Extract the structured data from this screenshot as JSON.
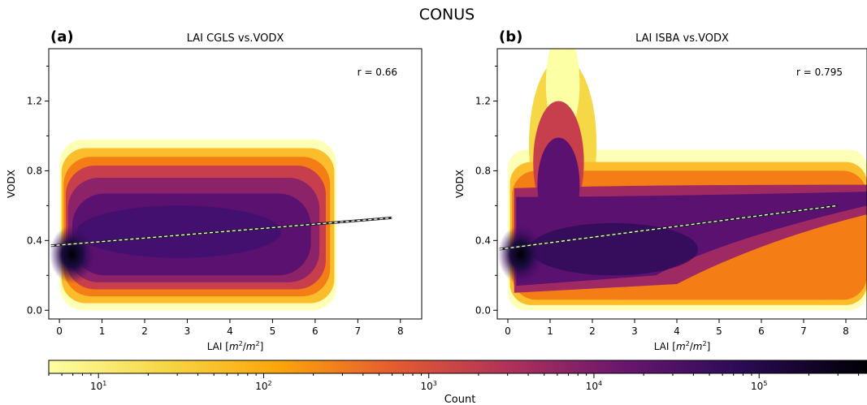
{
  "figure": {
    "suptitle": "CONUS"
  },
  "colorbar": {
    "label": "Count",
    "scale": "log",
    "range": [
      5,
      450000
    ],
    "ticks": [
      {
        "value": 10,
        "base": "10",
        "exp": "1"
      },
      {
        "value": 100,
        "base": "10",
        "exp": "2"
      },
      {
        "value": 1000,
        "base": "10",
        "exp": "3"
      },
      {
        "value": 10000,
        "base": "10",
        "exp": "4"
      },
      {
        "value": 100000,
        "base": "10",
        "exp": "5"
      }
    ],
    "colormap": "inferno_r",
    "colors": [
      "#fcffa4",
      "#fac228",
      "#f57d15",
      "#d44842",
      "#9f2a63",
      "#65156e",
      "#280b53",
      "#000004"
    ]
  },
  "chart_data": [
    {
      "type": "heatmap",
      "panel_label": "(a)",
      "title": "LAI CGLS vs.VODX",
      "xlabel": {
        "prefix": "LAI [",
        "unit_num": "m",
        "unit_num_exp": "2",
        "unit_den": "m",
        "unit_den_exp": "2",
        "suffix": "]"
      },
      "ylabel": "VODX",
      "xlim": [
        -0.25,
        8.5
      ],
      "ylim": [
        -0.05,
        1.5
      ],
      "xticks": [
        0,
        1,
        2,
        3,
        4,
        5,
        6,
        7,
        8
      ],
      "yticks": [
        0.0,
        0.4,
        0.8,
        1.2
      ],
      "ytick_labels": [
        "0.0",
        "0.4",
        "0.8",
        "1.2"
      ],
      "annotation": "r = 0.66",
      "regression_line": {
        "x": [
          -0.2,
          7.8
        ],
        "y": [
          0.37,
          0.53
        ]
      },
      "density": {
        "x_extent": [
          0.0,
          6.5
        ],
        "y_extent": [
          0.0,
          1.0
        ],
        "hotspot": {
          "x": 0.3,
          "y": 0.32
        },
        "description_note": "hexbin counts; densest near LAI 0-1, VODX 0.25-0.45"
      }
    },
    {
      "type": "heatmap",
      "panel_label": "(b)",
      "title": "LAI ISBA vs.VODX",
      "xlabel": {
        "prefix": "LAI [",
        "unit_num": "m",
        "unit_num_exp": "2",
        "unit_den": "m",
        "unit_den_exp": "2",
        "suffix": "]"
      },
      "ylabel": "VODX",
      "xlim": [
        -0.25,
        8.5
      ],
      "ylim": [
        -0.05,
        1.5
      ],
      "xticks": [
        0,
        1,
        2,
        3,
        4,
        5,
        6,
        7,
        8
      ],
      "yticks": [
        0.0,
        0.4,
        0.8,
        1.2
      ],
      "ytick_labels": [
        "0.0",
        "0.4",
        "0.8",
        "1.2"
      ],
      "annotation": "r = 0.795",
      "regression_line": {
        "x": [
          -0.2,
          7.8
        ],
        "y": [
          0.35,
          0.6
        ]
      },
      "density": {
        "x_extent": [
          0.0,
          8.4
        ],
        "y_extent": [
          0.0,
          1.45
        ],
        "hotspot": {
          "x": 0.3,
          "y": 0.32
        },
        "description_note": "hexbin counts; peak spike near LAI 1-1.5 reaching VODX 1.45"
      }
    }
  ]
}
